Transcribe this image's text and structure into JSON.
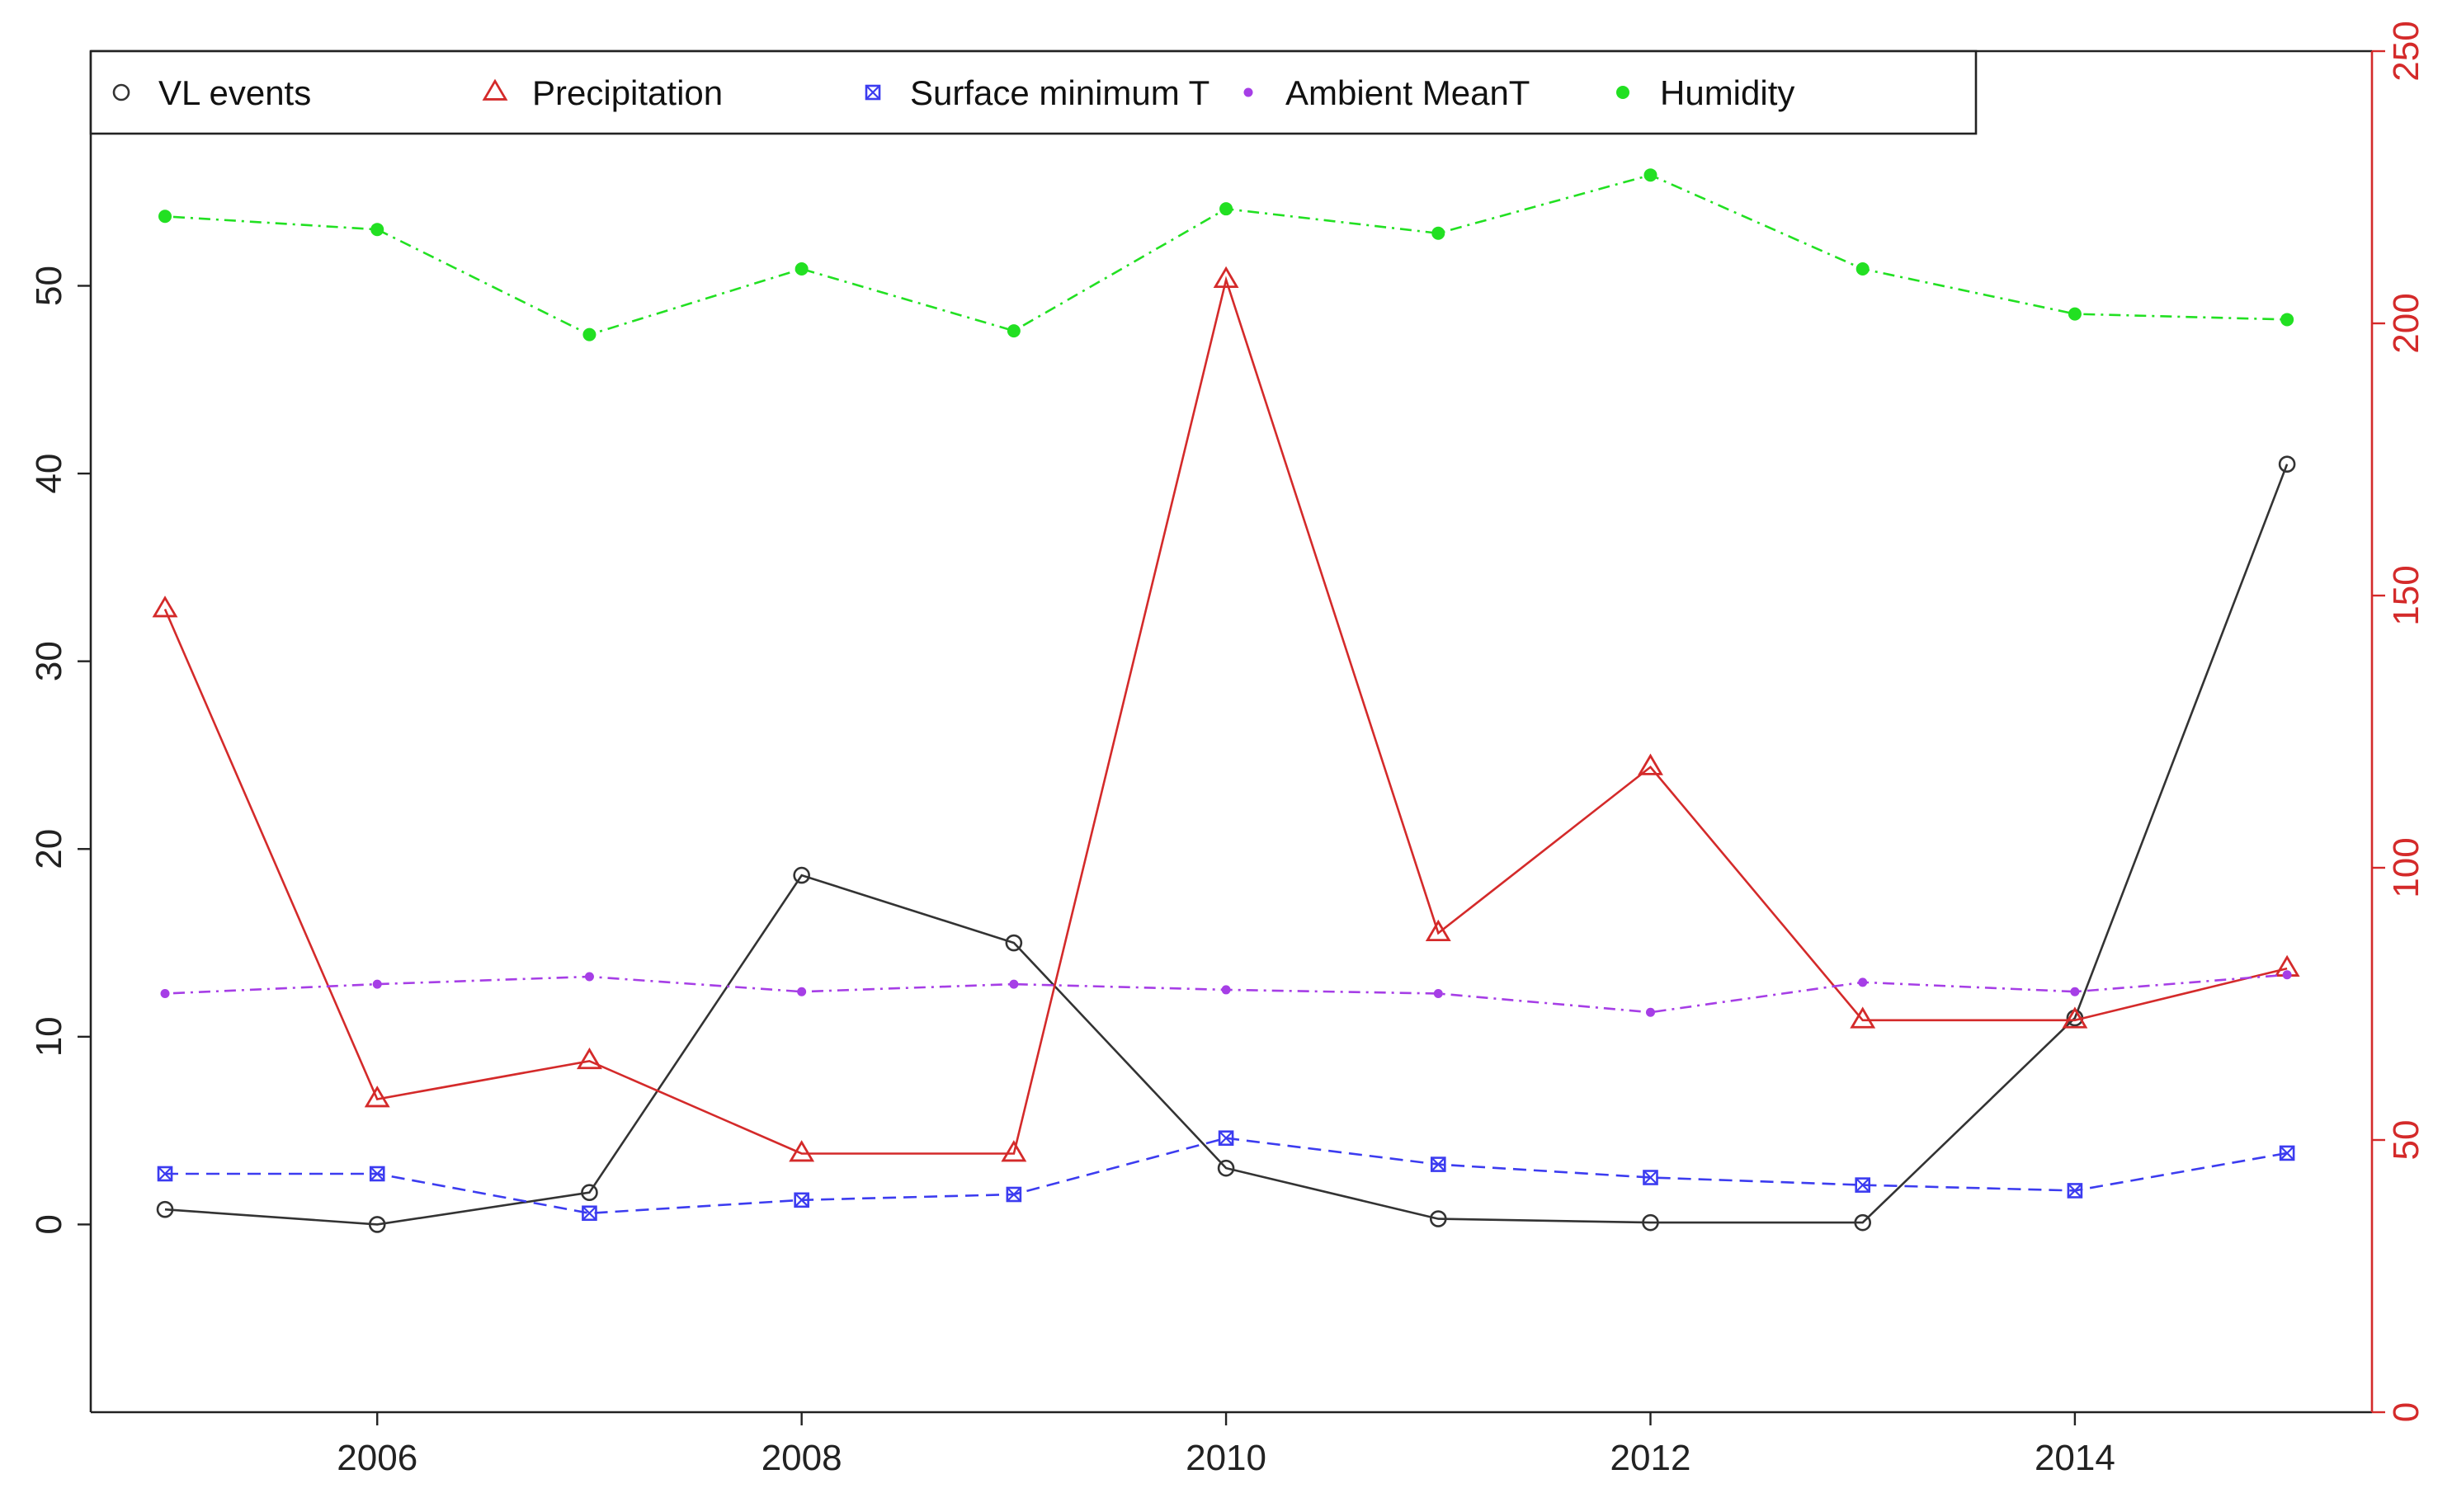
{
  "chart_data": {
    "type": "line",
    "title": "",
    "xlabel": "",
    "ylabel": "",
    "y2label": "",
    "x": [
      2005,
      2006,
      2007,
      2008,
      2009,
      2010,
      2011,
      2012,
      2013,
      2014,
      2015
    ],
    "xlim": [
      2004.65,
      2015.4
    ],
    "x_ticks": [
      2006,
      2008,
      2010,
      2012,
      2014
    ],
    "ylim": [
      -10,
      62.5
    ],
    "y_ticks": [
      0,
      10,
      20,
      30,
      40,
      50
    ],
    "y2lim": [
      0,
      250
    ],
    "y2_ticks": [
      0,
      50,
      100,
      150,
      200,
      250
    ],
    "grid": false,
    "legend_position": "top-left",
    "series": [
      {
        "name": "VL events",
        "axis": "left",
        "marker": "open-circle",
        "line_style": "solid",
        "color": "#333333",
        "values": [
          0.8,
          0,
          1.7,
          18.6,
          15.0,
          3.0,
          0.3,
          0.1,
          0.1,
          11.0,
          40.5
        ]
      },
      {
        "name": "Precipitation",
        "axis": "right",
        "marker": "open-triangle",
        "line_style": "solid",
        "color": "#d42a2a",
        "values": [
          147.5,
          57.5,
          64.5,
          47.5,
          47.5,
          208,
          88,
          118.5,
          72,
          72,
          81.5
        ]
      },
      {
        "name": "Surface minimum T",
        "axis": "left",
        "marker": "crossed-square",
        "line_style": "dashed",
        "color": "#3c3cf0",
        "values": [
          2.7,
          2.7,
          0.6,
          1.3,
          1.6,
          4.6,
          3.2,
          2.5,
          2.1,
          1.8,
          3.8
        ]
      },
      {
        "name": "Ambient MeanT",
        "axis": "left",
        "marker": "small-filled-dot",
        "line_style": "dotdash",
        "color": "#a63ee6",
        "values": [
          12.3,
          12.8,
          13.2,
          12.4,
          12.8,
          12.5,
          12.3,
          11.3,
          12.9,
          12.4,
          13.3
        ]
      },
      {
        "name": "Humidity",
        "axis": "left",
        "marker": "filled-circle",
        "line_style": "dotdash",
        "color": "#22e022",
        "values": [
          53.7,
          53.0,
          47.4,
          50.9,
          47.6,
          54.1,
          52.8,
          55.9,
          50.9,
          48.5,
          48.2
        ]
      }
    ]
  },
  "colors": {
    "axis_left": "#222222",
    "axis_right": "#d42a2a",
    "frame": "#222222",
    "background": "#ffffff"
  }
}
